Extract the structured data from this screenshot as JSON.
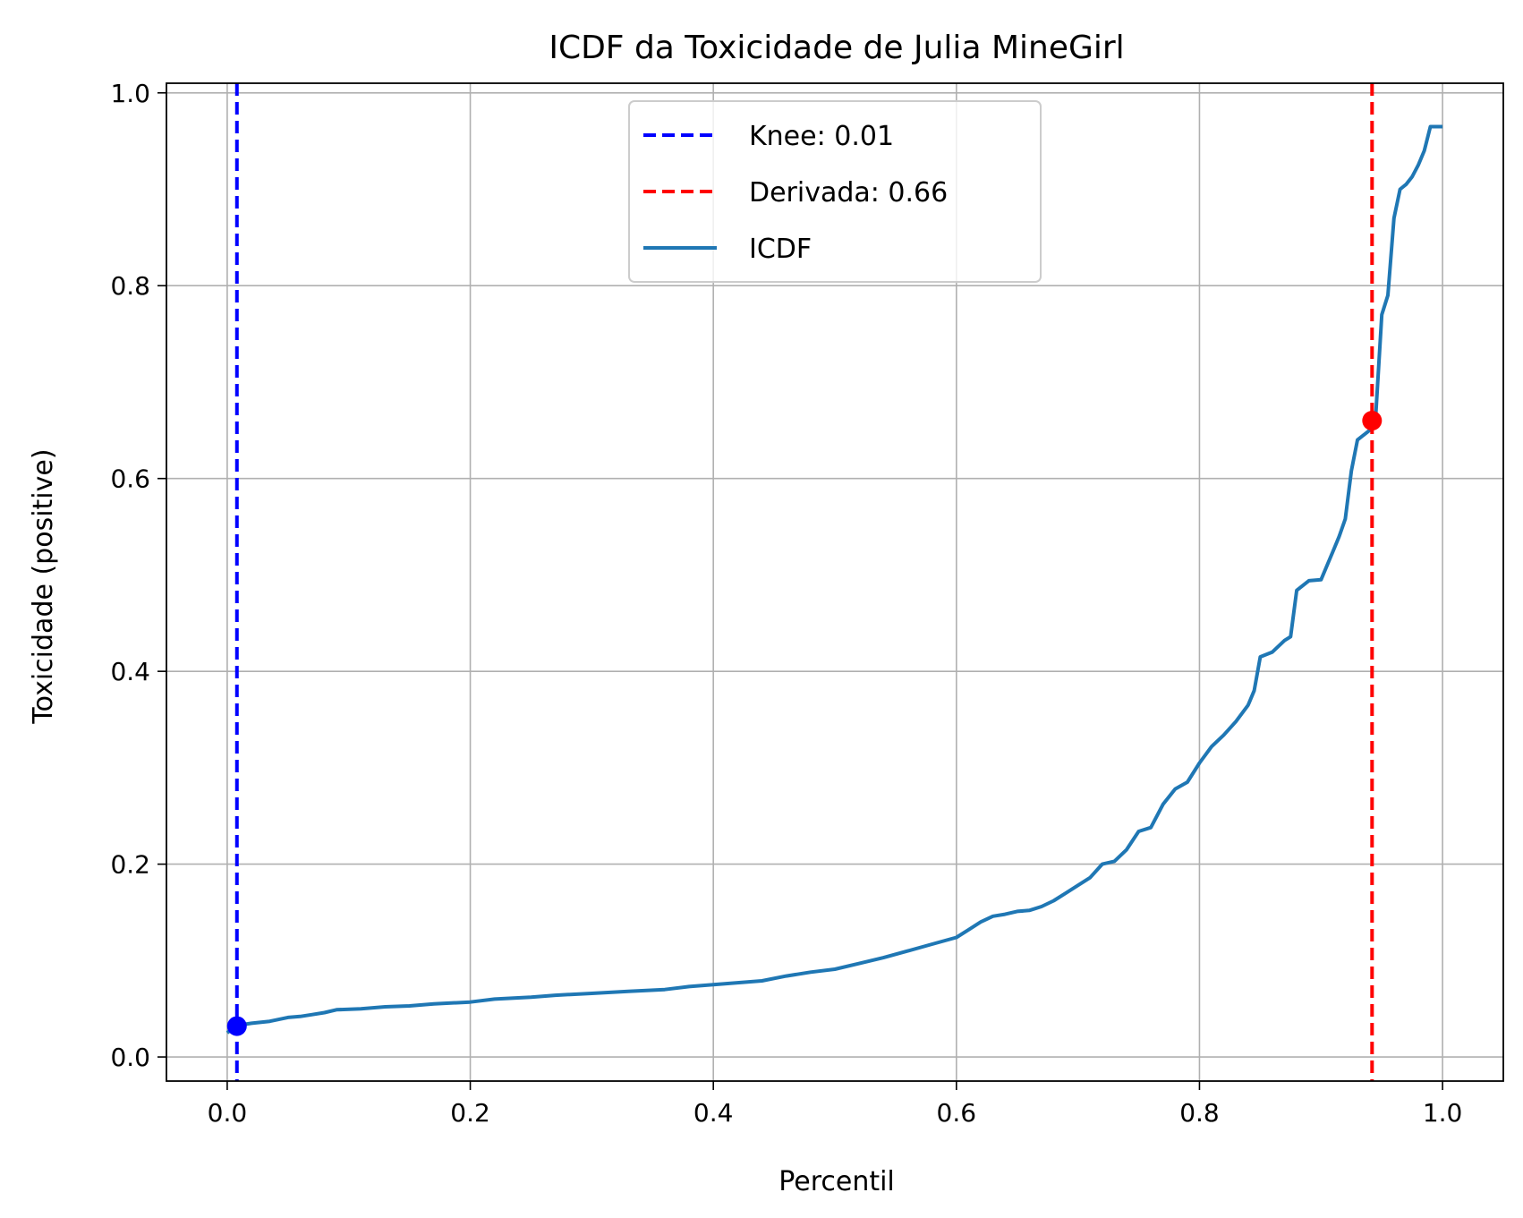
{
  "chart_data": {
    "type": "line",
    "title": "ICDF da Toxicidade de Julia MineGirl",
    "xlabel": "Percentil",
    "ylabel": "Toxicidade (positive)",
    "xlim": [
      -0.05,
      1.05
    ],
    "ylim": [
      -0.025,
      1.01
    ],
    "xticks": [
      0.0,
      0.2,
      0.4,
      0.6,
      0.8,
      1.0
    ],
    "xtick_labels": [
      "0.0",
      "0.2",
      "0.4",
      "0.6",
      "0.8",
      "1.0"
    ],
    "yticks": [
      0.0,
      0.2,
      0.4,
      0.6,
      0.8,
      1.0
    ],
    "ytick_labels": [
      "0.0",
      "0.2",
      "0.4",
      "0.6",
      "0.8",
      "1.0"
    ],
    "grid": true,
    "legend_position": "upper center",
    "vlines": [
      {
        "label": "Knee: 0.01",
        "x": 0.008,
        "color": "#0000ff",
        "style": "dashed"
      },
      {
        "label": "Derivada: 0.66",
        "x": 0.942,
        "color": "#ff0000",
        "style": "dashed"
      }
    ],
    "markers": [
      {
        "x": 0.008,
        "y": 0.032,
        "color": "#0000ff"
      },
      {
        "x": 0.942,
        "y": 0.66,
        "color": "#ff0000"
      }
    ],
    "series": [
      {
        "name": "ICDF",
        "color": "#1f77b4",
        "x": [
          0.0,
          0.005,
          0.01,
          0.02,
          0.035,
          0.05,
          0.06,
          0.07,
          0.08,
          0.09,
          0.11,
          0.13,
          0.15,
          0.17,
          0.2,
          0.22,
          0.25,
          0.27,
          0.3,
          0.33,
          0.36,
          0.38,
          0.4,
          0.42,
          0.44,
          0.46,
          0.48,
          0.5,
          0.52,
          0.54,
          0.56,
          0.58,
          0.6,
          0.61,
          0.62,
          0.63,
          0.64,
          0.65,
          0.66,
          0.67,
          0.68,
          0.69,
          0.7,
          0.71,
          0.72,
          0.73,
          0.74,
          0.75,
          0.76,
          0.77,
          0.78,
          0.79,
          0.8,
          0.81,
          0.82,
          0.83,
          0.84,
          0.845,
          0.85,
          0.86,
          0.87,
          0.875,
          0.88,
          0.89,
          0.9,
          0.91,
          0.915,
          0.92,
          0.925,
          0.93,
          0.935,
          0.94,
          0.945,
          0.95,
          0.955,
          0.96,
          0.965,
          0.97,
          0.975,
          0.98,
          0.985,
          0.99,
          0.995,
          1.0
        ],
        "y": [
          0.025,
          0.03,
          0.033,
          0.035,
          0.037,
          0.041,
          0.042,
          0.044,
          0.046,
          0.049,
          0.05,
          0.052,
          0.053,
          0.055,
          0.057,
          0.06,
          0.062,
          0.064,
          0.066,
          0.068,
          0.07,
          0.073,
          0.075,
          0.077,
          0.079,
          0.084,
          0.088,
          0.091,
          0.097,
          0.103,
          0.11,
          0.117,
          0.124,
          0.132,
          0.14,
          0.146,
          0.148,
          0.151,
          0.152,
          0.156,
          0.162,
          0.17,
          0.178,
          0.186,
          0.2,
          0.203,
          0.215,
          0.234,
          0.238,
          0.262,
          0.278,
          0.285,
          0.305,
          0.322,
          0.334,
          0.348,
          0.365,
          0.38,
          0.415,
          0.42,
          0.432,
          0.436,
          0.484,
          0.494,
          0.495,
          0.525,
          0.54,
          0.558,
          0.608,
          0.64,
          0.645,
          0.65,
          0.665,
          0.77,
          0.79,
          0.87,
          0.9,
          0.905,
          0.913,
          0.925,
          0.94,
          0.965,
          0.965,
          0.965
        ]
      }
    ]
  }
}
